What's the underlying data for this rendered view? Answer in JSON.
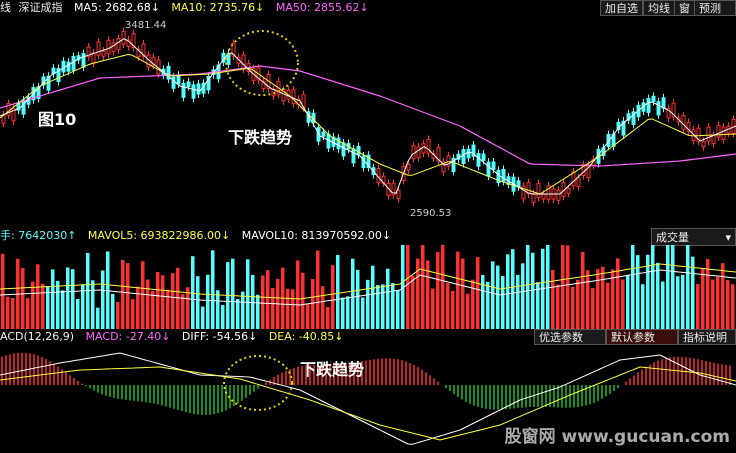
{
  "header": {
    "label": "线",
    "index_name": "深证成指",
    "ma5": "MA5: 2682.68↓",
    "ma10": "MA10: 2735.76↓",
    "ma50": "MA50: 2855.62↓",
    "buttons": [
      "加自选",
      "均线",
      "窗",
      "预测"
    ]
  },
  "price": {
    "high_label": "3481.44",
    "low_label": "2590.53"
  },
  "annotations": {
    "figure": "图10",
    "trend_main": "下跌趋势",
    "trend_macd": "下跌趋势"
  },
  "volume": {
    "hand": "手: 7642030↑",
    "mavol5": "MAVOL5: 693822986.00↓",
    "mavol10": "MAVOL10: 813970592.00↓",
    "dropdown": "成交量"
  },
  "macd": {
    "label": "ACD(12,26,9)",
    "macd": "MACD: -27.40↓",
    "diff": "DIFF: -54.56↓",
    "dea": "DEA: -40.85↓",
    "buttons": [
      "优选参数",
      "默认参数",
      "指标说明"
    ]
  },
  "watermark": "股窗网 www.gucuan.com",
  "colors": {
    "up": "#ff3030",
    "down": "#54ffff",
    "ma5": "#ffffff",
    "ma10": "#ffff40",
    "ma50": "#ff66ff",
    "macd_neg": "#20c020"
  }
}
